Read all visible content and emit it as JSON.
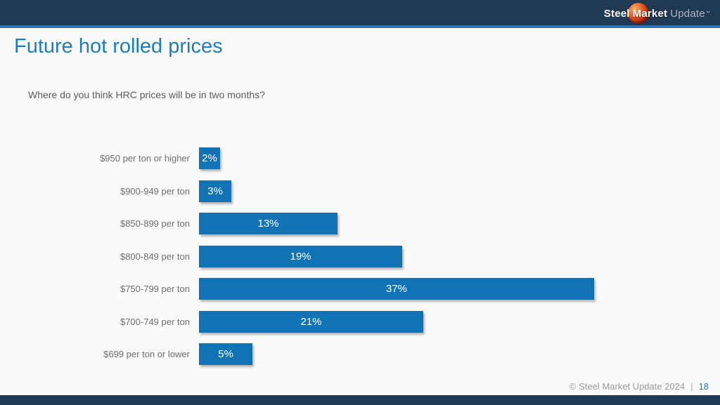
{
  "logo": {
    "steel": "Steel",
    "market": "Market",
    "update": "Update",
    "mark": "™"
  },
  "title": "Future hot rolled prices",
  "question": "Where do you think HRC prices will be in two months?",
  "chart_data": {
    "type": "bar",
    "orientation": "horizontal",
    "title": "Future hot rolled prices",
    "subtitle": "Where do you think HRC prices will be in two months?",
    "categories": [
      "$950 per ton or higher",
      "$900-949 per ton",
      "$850-899 per ton",
      "$800-849 per ton",
      "$750-799 per ton",
      "$700-749 per ton",
      "$699 per ton or lower"
    ],
    "values": [
      2,
      3,
      13,
      19,
      37,
      21,
      5
    ],
    "value_suffix": "%",
    "xlabel": "",
    "ylabel": "",
    "xlim": [
      0,
      40
    ],
    "grid": false,
    "legend": false,
    "bar_color": "#1173b4",
    "value_label_color": "#ffffff"
  },
  "footer": {
    "copyright": "© Steel Market Update 2024",
    "separator": "|",
    "page": "18"
  },
  "colors": {
    "header_navy": "#203a54",
    "accent_blue": "#2e75b6",
    "title_blue": "#1f7bc1",
    "bar_blue": "#1173b4",
    "text_gray": "#6d6e71"
  }
}
